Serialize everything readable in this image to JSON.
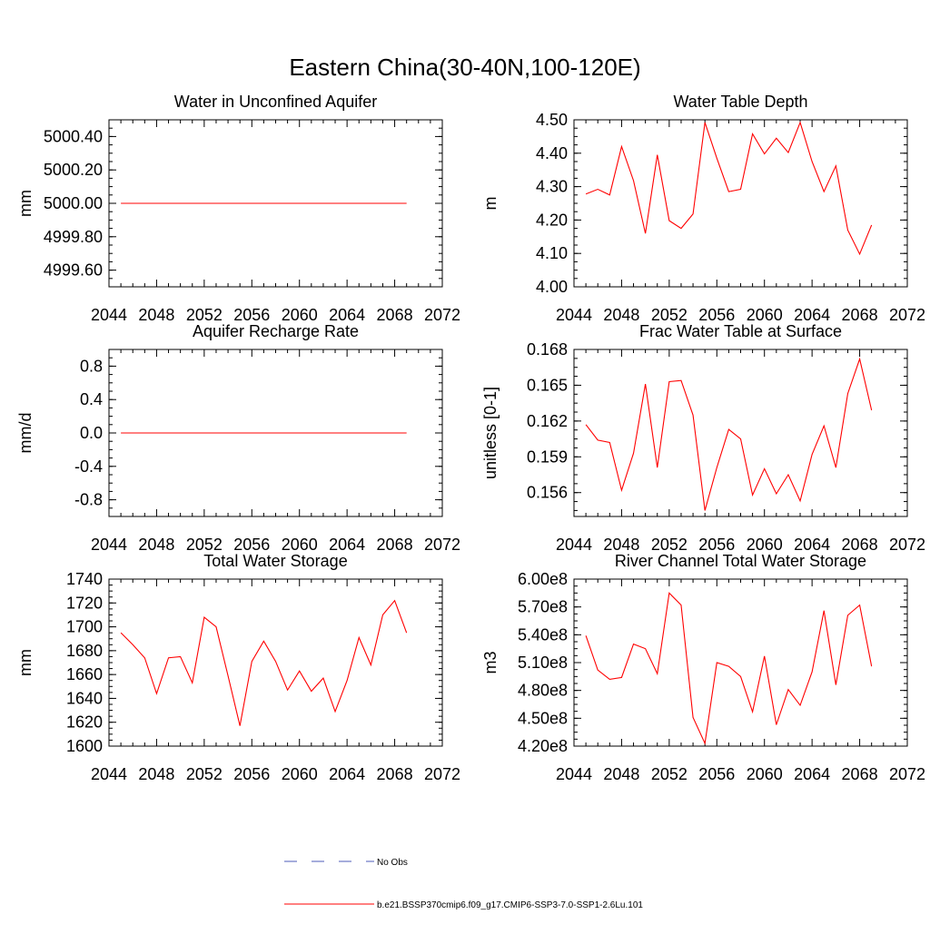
{
  "figure": {
    "title": "Eastern China(30-40N,100-120E)"
  },
  "colors": {
    "model": "#ff0000",
    "obs": "#4d5bb8",
    "axis": "#000000"
  },
  "legend": {
    "obs_label": "No Obs",
    "model_label": "b.e21.BSSP370cmip6.f09_g17.CMIP6-SSP3-7.0-SSP1-2.6Lu.101"
  },
  "chart_data": [
    {
      "type": "line",
      "title": "Water in Unconfined Aquifer",
      "ylabel": "mm",
      "xlabel": "",
      "xlim": [
        2044,
        2072
      ],
      "ylim": [
        4999.5,
        5000.5
      ],
      "xticks": [
        "2044",
        "2048",
        "2052",
        "2056",
        "2060",
        "2064",
        "2068",
        "2072"
      ],
      "yticks": [
        4999.6,
        4999.8,
        5000.0,
        5000.2,
        5000.4
      ],
      "ytick_labels": [
        "4999.60",
        "4999.80",
        "5000.00",
        "5000.20",
        "5000.40"
      ],
      "x": [
        2045,
        2046,
        2047,
        2048,
        2049,
        2050,
        2051,
        2052,
        2053,
        2054,
        2055,
        2056,
        2057,
        2058,
        2059,
        2060,
        2061,
        2062,
        2063,
        2064,
        2065,
        2066,
        2067,
        2068,
        2069
      ],
      "series": [
        {
          "name": "b.e21.BSSP370cmip6.f09_g17.CMIP6-SSP3-7.0-SSP1-2.6Lu.101",
          "values": [
            5000,
            5000,
            5000,
            5000,
            5000,
            5000,
            5000,
            5000,
            5000,
            5000,
            5000,
            5000,
            5000,
            5000,
            5000,
            5000,
            5000,
            5000,
            5000,
            5000,
            5000,
            5000,
            5000,
            5000,
            5000
          ]
        }
      ]
    },
    {
      "type": "line",
      "title": "Water Table Depth",
      "ylabel": "m",
      "xlabel": "",
      "xlim": [
        2044,
        2072
      ],
      "ylim": [
        4.0,
        4.5
      ],
      "xticks": [
        "2044",
        "2048",
        "2052",
        "2056",
        "2060",
        "2064",
        "2068",
        "2072"
      ],
      "yticks": [
        4.0,
        4.1,
        4.2,
        4.3,
        4.4,
        4.5
      ],
      "ytick_labels": [
        "4.00",
        "4.10",
        "4.20",
        "4.30",
        "4.40",
        "4.50"
      ],
      "x": [
        2045,
        2046,
        2047,
        2048,
        2049,
        2050,
        2051,
        2052,
        2053,
        2054,
        2055,
        2056,
        2057,
        2058,
        2059,
        2060,
        2061,
        2062,
        2063,
        2064,
        2065,
        2066,
        2067,
        2068,
        2069
      ],
      "series": [
        {
          "name": "b.e21.BSSP370cmip6.f09_g17.CMIP6-SSP3-7.0-SSP1-2.6Lu.101",
          "values": [
            4.278,
            4.292,
            4.275,
            4.42,
            4.318,
            4.16,
            4.395,
            4.198,
            4.175,
            4.218,
            4.492,
            4.385,
            4.285,
            4.292,
            4.458,
            4.398,
            4.445,
            4.402,
            4.492,
            4.375,
            4.285,
            4.362,
            4.17,
            4.098,
            4.185
          ]
        }
      ]
    },
    {
      "type": "line",
      "title": "Aquifer Recharge Rate",
      "ylabel": "mm/d",
      "xlabel": "",
      "xlim": [
        2044,
        2072
      ],
      "ylim": [
        -1.0,
        1.0
      ],
      "xticks": [
        "2044",
        "2048",
        "2052",
        "2056",
        "2060",
        "2064",
        "2068",
        "2072"
      ],
      "yticks": [
        -0.8,
        -0.4,
        0.0,
        0.4,
        0.8
      ],
      "ytick_labels": [
        "-0.8",
        "-0.4",
        "0.0",
        "0.4",
        "0.8"
      ],
      "x": [
        2045,
        2046,
        2047,
        2048,
        2049,
        2050,
        2051,
        2052,
        2053,
        2054,
        2055,
        2056,
        2057,
        2058,
        2059,
        2060,
        2061,
        2062,
        2063,
        2064,
        2065,
        2066,
        2067,
        2068,
        2069
      ],
      "series": [
        {
          "name": "b.e21.BSSP370cmip6.f09_g17.CMIP6-SSP3-7.0-SSP1-2.6Lu.101",
          "values": [
            0,
            0,
            0,
            0,
            0,
            0,
            0,
            0,
            0,
            0,
            0,
            0,
            0,
            0,
            0,
            0,
            0,
            0,
            0,
            0,
            0,
            0,
            0,
            0,
            0
          ]
        }
      ]
    },
    {
      "type": "line",
      "title": "Frac Water Table at Surface",
      "ylabel": "unitless [0-1]",
      "xlabel": "",
      "xlim": [
        2044,
        2072
      ],
      "ylim": [
        0.154,
        0.168
      ],
      "xticks": [
        "2044",
        "2048",
        "2052",
        "2056",
        "2060",
        "2064",
        "2068",
        "2072"
      ],
      "yticks": [
        0.156,
        0.159,
        0.162,
        0.165,
        0.168
      ],
      "ytick_labels": [
        "0.156",
        "0.159",
        "0.162",
        "0.165",
        "0.168"
      ],
      "x": [
        2045,
        2046,
        2047,
        2048,
        2049,
        2050,
        2051,
        2052,
        2053,
        2054,
        2055,
        2056,
        2057,
        2058,
        2059,
        2060,
        2061,
        2062,
        2063,
        2064,
        2065,
        2066,
        2067,
        2068,
        2069
      ],
      "series": [
        {
          "name": "b.e21.BSSP370cmip6.f09_g17.CMIP6-SSP3-7.0-SSP1-2.6Lu.101",
          "values": [
            0.1617,
            0.1604,
            0.1602,
            0.1562,
            0.1593,
            0.1651,
            0.1581,
            0.1653,
            0.1654,
            0.1625,
            0.1545,
            0.1581,
            0.1613,
            0.1605,
            0.1558,
            0.158,
            0.1559,
            0.1575,
            0.1553,
            0.1592,
            0.1616,
            0.1581,
            0.1643,
            0.1672,
            0.1629
          ]
        }
      ]
    },
    {
      "type": "line",
      "title": "Total Water Storage",
      "ylabel": "mm",
      "xlabel": "",
      "xlim": [
        2044,
        2072
      ],
      "ylim": [
        1600,
        1740
      ],
      "xticks": [
        "2044",
        "2048",
        "2052",
        "2056",
        "2060",
        "2064",
        "2068",
        "2072"
      ],
      "yticks": [
        1600,
        1620,
        1640,
        1660,
        1680,
        1700,
        1720,
        1740
      ],
      "ytick_labels": [
        "1600",
        "1620",
        "1640",
        "1660",
        "1680",
        "1700",
        "1720",
        "1740"
      ],
      "x": [
        2045,
        2046,
        2047,
        2048,
        2049,
        2050,
        2051,
        2052,
        2053,
        2054,
        2055,
        2056,
        2057,
        2058,
        2059,
        2060,
        2061,
        2062,
        2063,
        2064,
        2065,
        2066,
        2067,
        2068,
        2069
      ],
      "series": [
        {
          "name": "b.e21.BSSP370cmip6.f09_g17.CMIP6-SSP3-7.0-SSP1-2.6Lu.101",
          "values": [
            1695,
            1685,
            1674,
            1644,
            1674,
            1675,
            1653,
            1708,
            1700,
            1659,
            1617,
            1671,
            1688,
            1671,
            1647,
            1663,
            1646,
            1657,
            1629,
            1655,
            1691,
            1668,
            1710,
            1722,
            1695
          ]
        }
      ]
    },
    {
      "type": "line",
      "title": "River Channel Total Water Storage",
      "ylabel": "m3",
      "xlabel": "",
      "xlim": [
        2044,
        2072
      ],
      "ylim": [
        420000000,
        600000000
      ],
      "xticks": [
        "2044",
        "2048",
        "2052",
        "2056",
        "2060",
        "2064",
        "2068",
        "2072"
      ],
      "yticks": [
        420000000,
        450000000,
        480000000,
        510000000,
        540000000,
        570000000,
        600000000
      ],
      "ytick_labels": [
        "4.20e8",
        "4.50e8",
        "4.80e8",
        "5.10e8",
        "5.40e8",
        "5.70e8",
        "6.00e8"
      ],
      "x": [
        2045,
        2046,
        2047,
        2048,
        2049,
        2050,
        2051,
        2052,
        2053,
        2054,
        2055,
        2056,
        2057,
        2058,
        2059,
        2060,
        2061,
        2062,
        2063,
        2064,
        2065,
        2066,
        2067,
        2068,
        2069
      ],
      "series": [
        {
          "name": "b.e21.BSSP370cmip6.f09_g17.CMIP6-SSP3-7.0-SSP1-2.6Lu.101",
          "values": [
            539000000,
            502000000,
            492000000,
            494000000,
            530000000,
            525000000,
            498000000,
            585000000,
            572000000,
            451000000,
            423000000,
            510000000,
            506000000,
            495000000,
            457000000,
            517000000,
            443000000,
            481000000,
            464000000,
            500000000,
            566000000,
            486000000,
            561000000,
            572000000,
            506000000
          ]
        }
      ]
    }
  ]
}
